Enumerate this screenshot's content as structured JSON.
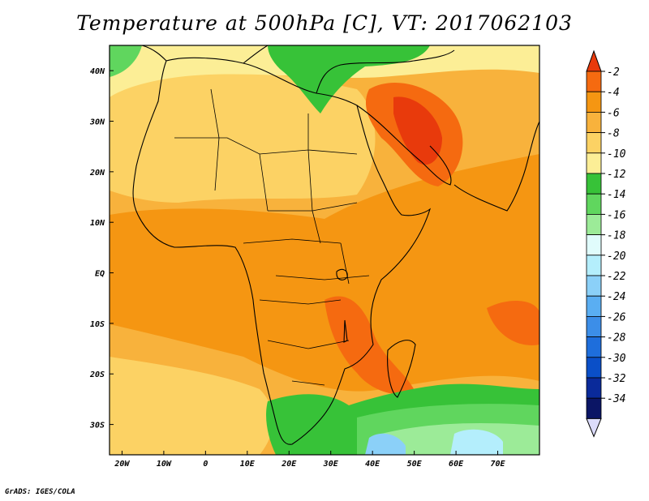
{
  "title": "Temperature at 500hPa [C], VT: 2017062103",
  "credit": "GrADS: IGES/COLA",
  "map": {
    "lon_range": [
      -23,
      80
    ],
    "lat_range": [
      -36,
      45
    ],
    "lon_ticks": [
      {
        "value": -20,
        "label": "20W"
      },
      {
        "value": -10,
        "label": "10W"
      },
      {
        "value": 0,
        "label": "0"
      },
      {
        "value": 10,
        "label": "10E"
      },
      {
        "value": 20,
        "label": "20E"
      },
      {
        "value": 30,
        "label": "30E"
      },
      {
        "value": 40,
        "label": "40E"
      },
      {
        "value": 50,
        "label": "50E"
      },
      {
        "value": 60,
        "label": "60E"
      },
      {
        "value": 70,
        "label": "70E"
      }
    ],
    "lat_ticks": [
      {
        "value": 40,
        "label": "40N"
      },
      {
        "value": 30,
        "label": "30N"
      },
      {
        "value": 20,
        "label": "20N"
      },
      {
        "value": 10,
        "label": "10N"
      },
      {
        "value": 0,
        "label": "EQ"
      },
      {
        "value": -10,
        "label": "10S"
      },
      {
        "value": -20,
        "label": "20S"
      },
      {
        "value": -30,
        "label": "30S"
      }
    ]
  },
  "colorbar": {
    "levels": [
      "-2",
      "-4",
      "-6",
      "-8",
      "-10",
      "-12",
      "-14",
      "-16",
      "-18",
      "-20",
      "-22",
      "-24",
      "-26",
      "-28",
      "-30",
      "-32",
      "-34"
    ],
    "colors": [
      "#e83a0c",
      "#f56a10",
      "#f59612",
      "#f8b23c",
      "#fcd264",
      "#fcee96",
      "#37c238",
      "#60d65e",
      "#9ceb98",
      "#e0fcfc",
      "#b4eefc",
      "#8bd0f8",
      "#5aaef2",
      "#3c8ee8",
      "#1e6edc",
      "#0a4fc8",
      "#0a2a9a",
      "#0b1565"
    ],
    "under_color": "#dcdcfc"
  },
  "colors": {
    "ocean": "#f8b23c",
    "warm": "#f59612",
    "hot": "#f56a10",
    "land_cool": "#fcd264",
    "pale": "#fcee96",
    "green": "#37c238",
    "light_green": "#60d65e",
    "blue": "#8bd0f8"
  }
}
